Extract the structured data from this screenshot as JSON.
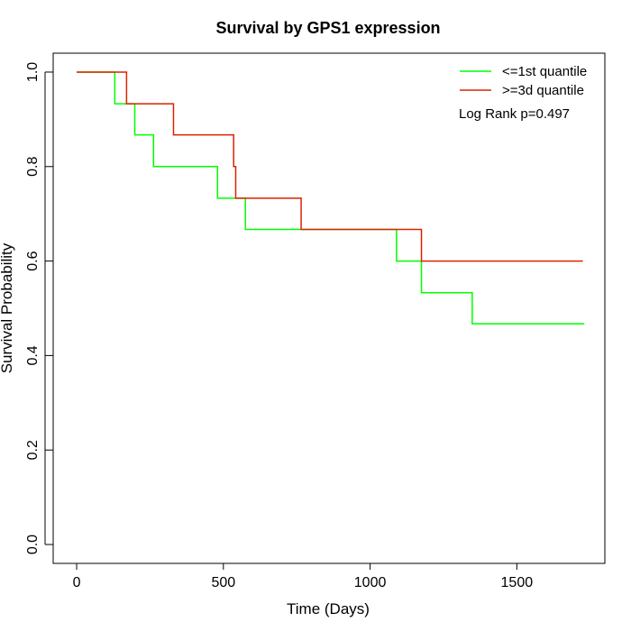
{
  "chart_data": {
    "type": "line",
    "title": "Survival by GPS1 expression",
    "xlabel": "Time (Days)",
    "ylabel": "Survival Probability",
    "xlim": [
      -80,
      1800
    ],
    "ylim": [
      -0.04,
      1.04
    ],
    "x_ticks": [
      0,
      500,
      1000,
      1500
    ],
    "y_ticks": [
      0.0,
      0.2,
      0.4,
      0.6,
      0.8,
      1.0
    ],
    "x_tick_labels": [
      "0",
      "500",
      "1000",
      "1500"
    ],
    "y_tick_labels": [
      "0.0",
      "0.2",
      "0.4",
      "0.6",
      "0.8",
      "1.0"
    ],
    "grid": false,
    "legend_position": "top-right",
    "annotation": "Log Rank p=0.497",
    "series": [
      {
        "name": "<=1st quantile",
        "color": "#00ff00",
        "step": true,
        "points": [
          [
            0,
            1.0
          ],
          [
            130,
            1.0
          ],
          [
            130,
            0.933
          ],
          [
            198,
            0.933
          ],
          [
            198,
            0.867
          ],
          [
            262,
            0.867
          ],
          [
            262,
            0.8
          ],
          [
            480,
            0.8
          ],
          [
            480,
            0.733
          ],
          [
            575,
            0.733
          ],
          [
            575,
            0.667
          ],
          [
            1090,
            0.667
          ],
          [
            1090,
            0.6
          ],
          [
            1175,
            0.6
          ],
          [
            1175,
            0.533
          ],
          [
            1348,
            0.533
          ],
          [
            1348,
            0.467
          ],
          [
            1730,
            0.467
          ]
        ]
      },
      {
        "name": ">=3d quantile",
        "color": "#dd2200",
        "step": true,
        "points": [
          [
            0,
            1.0
          ],
          [
            170,
            1.0
          ],
          [
            170,
            0.933
          ],
          [
            330,
            0.933
          ],
          [
            330,
            0.867
          ],
          [
            535,
            0.867
          ],
          [
            535,
            0.8
          ],
          [
            542,
            0.8
          ],
          [
            542,
            0.733
          ],
          [
            765,
            0.733
          ],
          [
            765,
            0.667
          ],
          [
            1175,
            0.667
          ],
          [
            1175,
            0.6
          ],
          [
            1725,
            0.6
          ]
        ]
      }
    ]
  }
}
